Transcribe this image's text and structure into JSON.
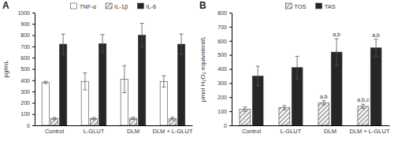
{
  "chart_data": [
    {
      "type": "bar",
      "title": "A",
      "ylabel": "pg/mL",
      "categories": [
        "Control",
        "L-GLUT",
        "DLM",
        "DLM + L-GLUT"
      ],
      "series": [
        {
          "name": "TNF-α",
          "color": "#ffffff",
          "values": [
            380,
            390,
            410,
            390
          ],
          "errors": [
            10,
            75,
            120,
            50
          ]
        },
        {
          "name": "IL-1β",
          "color": "#9a9a9a",
          "values": [
            60,
            60,
            62,
            60
          ],
          "errors": [
            10,
            10,
            10,
            12
          ]
        },
        {
          "name": "IL-6",
          "color": "#262626",
          "values": [
            720,
            725,
            800,
            720
          ],
          "errors": [
            90,
            80,
            105,
            90
          ]
        }
      ],
      "ylim": [
        0,
        1000
      ],
      "yticks": [
        0,
        100,
        200,
        300,
        400,
        500,
        600,
        700,
        800,
        900,
        1000
      ],
      "legend": "top"
    },
    {
      "type": "bar",
      "title": "B",
      "ylabel": "μmol H₂O₂ equivalent/L",
      "categories": [
        "Control",
        "L-GLUT",
        "DLM",
        "DLM + L-GLUT"
      ],
      "series": [
        {
          "name": "TOS",
          "color": "#9a9a9a",
          "values": [
            115,
            125,
            160,
            135
          ],
          "errors": [
            15,
            15,
            15,
            15
          ],
          "annotations": [
            null,
            null,
            "a,b",
            "a,b,c"
          ]
        },
        {
          "name": "TAS",
          "color": "#262626",
          "values": [
            350,
            410,
            520,
            550
          ],
          "errors": [
            70,
            80,
            95,
            60
          ],
          "annotations": [
            null,
            null,
            "a,b",
            "a,b"
          ]
        }
      ],
      "ylim": [
        0,
        800
      ],
      "yticks": [
        0,
        100,
        200,
        300,
        400,
        500,
        600,
        700,
        800
      ],
      "legend": "top"
    }
  ]
}
